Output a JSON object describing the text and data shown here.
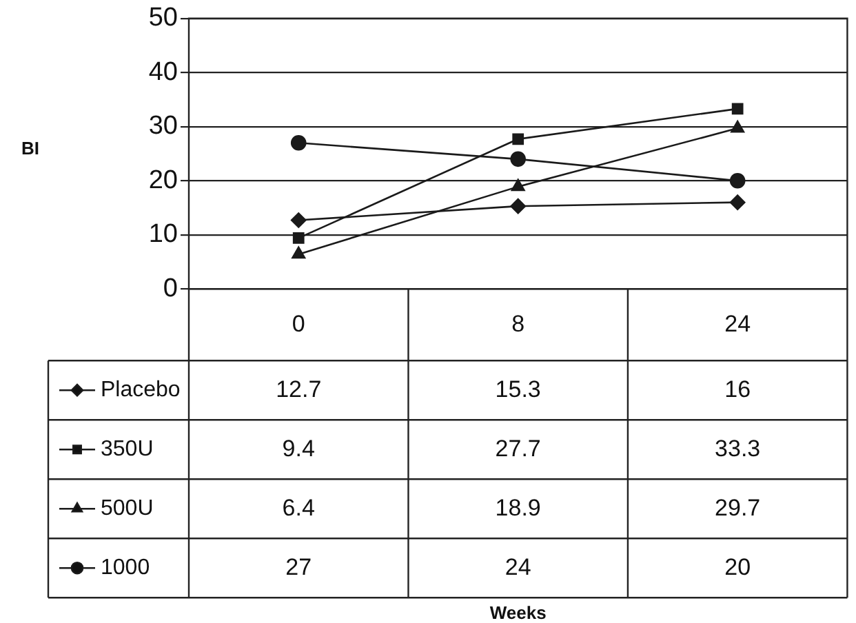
{
  "chart_data": {
    "type": "line",
    "annotations": [
      "BI",
      "Weeks"
    ],
    "categories": [
      "0",
      "8",
      "24"
    ],
    "series": [
      {
        "name": "Placebo",
        "color": "#1a1a1a",
        "marker": "diamond",
        "values": [
          12.7,
          15.3,
          16
        ]
      },
      {
        "name": "350U",
        "color": "#1a1a1a",
        "marker": "square",
        "values": [
          9.4,
          27.7,
          33.3
        ]
      },
      {
        "name": "500U",
        "color": "#1a1a1a",
        "marker": "triangle",
        "values": [
          6.4,
          18.9,
          29.7
        ]
      },
      {
        "name": "1000",
        "color": "#1a1a1a",
        "marker": "circle",
        "values": [
          27,
          24,
          20
        ]
      }
    ],
    "ylim": [
      0,
      50
    ],
    "yticks": [
      0,
      10,
      20,
      30,
      40,
      50
    ],
    "grid": "y",
    "legend": "bottom",
    "data_labels": true,
    "line_style": "solid"
  }
}
